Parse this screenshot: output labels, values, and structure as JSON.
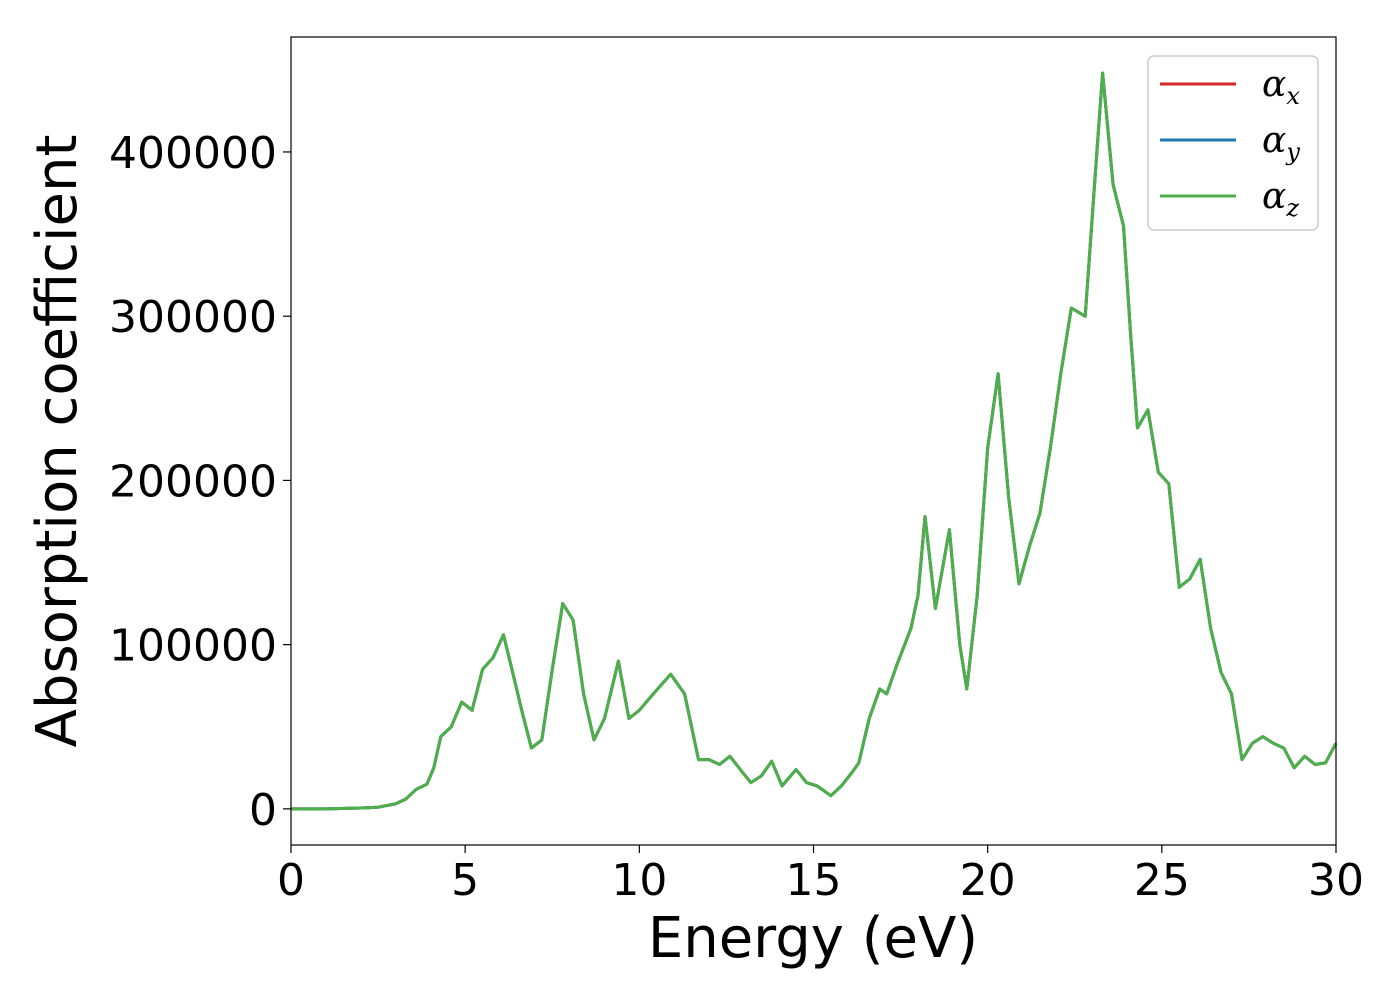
{
  "chart_data": {
    "type": "line",
    "title": "",
    "xlabel": "Energy (eV)",
    "ylabel": "Absorption coefficient",
    "xlim": [
      0,
      30
    ],
    "ylim": [
      -22000,
      470000
    ],
    "x_ticks": [
      "0",
      "5",
      "10",
      "15",
      "20",
      "25",
      "30"
    ],
    "x_tick_values": [
      0,
      5,
      10,
      15,
      20,
      25,
      30
    ],
    "y_ticks": [
      "0",
      "100000",
      "200000",
      "300000",
      "400000"
    ],
    "y_tick_values": [
      0,
      100000,
      200000,
      300000,
      400000
    ],
    "grid": false,
    "legend_position": "top-right",
    "colors": {
      "alpha_x": "#d62728",
      "alpha_y": "#1f77b4",
      "alpha_z": "#4daf4a"
    },
    "legend": [
      {
        "symbol": "α",
        "sub": "x",
        "color": "#d62728"
      },
      {
        "symbol": "α",
        "sub": "y",
        "color": "#1f77b4"
      },
      {
        "symbol": "α",
        "sub": "z",
        "color": "#4daf4a"
      }
    ],
    "x": [
      0,
      1,
      2,
      2.5,
      3,
      3.3,
      3.6,
      3.9,
      4.1,
      4.3,
      4.6,
      4.9,
      5.2,
      5.5,
      5.8,
      6.1,
      6.4,
      6.6,
      6.9,
      7.2,
      7.5,
      7.8,
      8.1,
      8.4,
      8.7,
      9.0,
      9.4,
      9.7,
      10.0,
      10.4,
      10.9,
      11.3,
      11.7,
      12.0,
      12.3,
      12.6,
      12.9,
      13.2,
      13.5,
      13.8,
      14.1,
      14.5,
      14.8,
      15.1,
      15.5,
      15.8,
      16.1,
      16.3,
      16.6,
      16.9,
      17.1,
      17.4,
      17.8,
      18.0,
      18.2,
      18.5,
      18.9,
      19.2,
      19.4,
      19.7,
      20.0,
      20.3,
      20.6,
      20.9,
      21.2,
      21.5,
      21.8,
      22.1,
      22.4,
      22.8,
      23.1,
      23.3,
      23.6,
      23.9,
      24.1,
      24.3,
      24.6,
      24.9,
      25.2,
      25.5,
      25.8,
      26.1,
      26.4,
      26.7,
      27.0,
      27.3,
      27.6,
      27.9,
      28.2,
      28.5,
      28.8,
      29.1,
      29.4,
      29.7,
      30.0
    ],
    "series": [
      {
        "name": "",
        "values": [
          0,
          0,
          500,
          1000,
          3000,
          6000,
          12000,
          15000,
          25000,
          44000,
          50000,
          65000,
          60000,
          85000,
          92000,
          106000,
          80000,
          62000,
          37000,
          42000,
          85000,
          125000,
          115000,
          70000,
          42000,
          55000,
          90000,
          55000,
          60000,
          70000,
          82000,
          70000,
          30000,
          30000,
          27000,
          32000,
          24000,
          16000,
          20000,
          29000,
          14000,
          24000,
          16000,
          14000,
          8000,
          14000,
          22000,
          28000,
          55000,
          73000,
          70000,
          88000,
          110000,
          130000,
          178000,
          122000,
          170000,
          100000,
          73000,
          130000,
          220000,
          265000,
          190000,
          137000,
          160000,
          180000,
          220000,
          265000,
          305000,
          300000,
          390000,
          448000,
          380000,
          355000,
          290000,
          232000,
          243000,
          205000,
          198000,
          135000,
          140000,
          152000,
          110000,
          83000,
          70000,
          30000,
          40000,
          44000,
          40000,
          37000,
          25000,
          32000,
          27000,
          28000,
          40000
        ]
      },
      {
        "name": "",
        "values": [
          0,
          0,
          500,
          1000,
          3000,
          6000,
          12000,
          15000,
          25000,
          44000,
          50000,
          65000,
          60000,
          85000,
          92000,
          106000,
          80000,
          62000,
          37000,
          42000,
          85000,
          125000,
          115000,
          70000,
          42000,
          55000,
          90000,
          55000,
          60000,
          70000,
          82000,
          70000,
          30000,
          30000,
          27000,
          32000,
          24000,
          16000,
          20000,
          29000,
          14000,
          24000,
          16000,
          14000,
          8000,
          14000,
          22000,
          28000,
          55000,
          73000,
          70000,
          88000,
          110000,
          130000,
          178000,
          122000,
          170000,
          100000,
          73000,
          130000,
          220000,
          265000,
          190000,
          137000,
          160000,
          180000,
          220000,
          265000,
          305000,
          300000,
          390000,
          448000,
          380000,
          355000,
          290000,
          232000,
          243000,
          205000,
          198000,
          135000,
          140000,
          152000,
          110000,
          83000,
          70000,
          30000,
          40000,
          44000,
          40000,
          37000,
          25000,
          32000,
          27000,
          28000,
          40000
        ]
      },
      {
        "name": "",
        "values": [
          0,
          0,
          500,
          1000,
          3000,
          6000,
          12000,
          15000,
          25000,
          44000,
          50000,
          65000,
          60000,
          85000,
          92000,
          106000,
          80000,
          62000,
          37000,
          42000,
          85000,
          125000,
          115000,
          70000,
          42000,
          55000,
          90000,
          55000,
          60000,
          70000,
          82000,
          70000,
          30000,
          30000,
          27000,
          32000,
          24000,
          16000,
          20000,
          29000,
          14000,
          24000,
          16000,
          14000,
          8000,
          14000,
          22000,
          28000,
          55000,
          73000,
          70000,
          88000,
          110000,
          130000,
          178000,
          122000,
          170000,
          100000,
          73000,
          130000,
          220000,
          265000,
          190000,
          137000,
          160000,
          180000,
          220000,
          265000,
          305000,
          300000,
          390000,
          448000,
          380000,
          355000,
          290000,
          232000,
          243000,
          205000,
          198000,
          135000,
          140000,
          152000,
          110000,
          83000,
          70000,
          30000,
          40000,
          44000,
          40000,
          37000,
          25000,
          32000,
          27000,
          28000,
          40000
        ]
      }
    ]
  }
}
